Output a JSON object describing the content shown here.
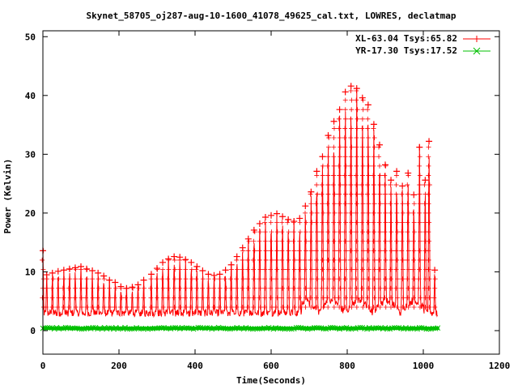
{
  "chart_data": {
    "type": "line",
    "title": "Skynet_58705_oj287-aug-10-1600_41078_49625_cal.txt, LOWRES, declatmap",
    "xlabel": "Time(Seconds)",
    "ylabel": "Power (Kelvin)",
    "xlim": [
      0,
      1200
    ],
    "ylim": [
      -4,
      51
    ],
    "xticks": [
      "0",
      "200",
      "400",
      "600",
      "800",
      "1000",
      "1200"
    ],
    "yticks": [
      "0",
      "10",
      "20",
      "30",
      "40",
      "50"
    ],
    "xtick_values": [
      0,
      200,
      400,
      600,
      800,
      1000,
      1200
    ],
    "ytick_values": [
      0,
      10,
      20,
      30,
      40,
      50
    ],
    "legend_position": "top-right",
    "grid": false,
    "x_end": 1038,
    "series": [
      {
        "name": "XL-63.04 Tsys:65.82",
        "color": "#ff0000",
        "marker": "+",
        "peaks": [
          {
            "x": 0,
            "y": 13.6
          },
          {
            "x": 10,
            "y": 9.5
          },
          {
            "x": 25,
            "y": 9.8
          },
          {
            "x": 40,
            "y": 10.1
          },
          {
            "x": 55,
            "y": 10.3
          },
          {
            "x": 70,
            "y": 10.5
          },
          {
            "x": 85,
            "y": 10.7
          },
          {
            "x": 100,
            "y": 10.9
          },
          {
            "x": 115,
            "y": 10.5
          },
          {
            "x": 130,
            "y": 10.2
          },
          {
            "x": 145,
            "y": 9.8
          },
          {
            "x": 160,
            "y": 9.3
          },
          {
            "x": 175,
            "y": 8.6
          },
          {
            "x": 190,
            "y": 8.2
          },
          {
            "x": 205,
            "y": 7.5
          },
          {
            "x": 220,
            "y": 7.2
          },
          {
            "x": 235,
            "y": 7.4
          },
          {
            "x": 250,
            "y": 7.8
          },
          {
            "x": 265,
            "y": 8.6
          },
          {
            "x": 285,
            "y": 9.6
          },
          {
            "x": 300,
            "y": 10.6
          },
          {
            "x": 315,
            "y": 11.6
          },
          {
            "x": 330,
            "y": 12.2
          },
          {
            "x": 345,
            "y": 12.6
          },
          {
            "x": 360,
            "y": 12.5
          },
          {
            "x": 375,
            "y": 12.1
          },
          {
            "x": 390,
            "y": 11.6
          },
          {
            "x": 405,
            "y": 10.9
          },
          {
            "x": 420,
            "y": 10.2
          },
          {
            "x": 435,
            "y": 9.6
          },
          {
            "x": 450,
            "y": 9.4
          },
          {
            "x": 465,
            "y": 9.6
          },
          {
            "x": 480,
            "y": 10.3
          },
          {
            "x": 495,
            "y": 11.2
          },
          {
            "x": 510,
            "y": 12.6
          },
          {
            "x": 525,
            "y": 14.1
          },
          {
            "x": 540,
            "y": 15.6
          },
          {
            "x": 555,
            "y": 17.1
          },
          {
            "x": 570,
            "y": 18.2
          },
          {
            "x": 585,
            "y": 19.3
          },
          {
            "x": 600,
            "y": 19.6
          },
          {
            "x": 615,
            "y": 19.9
          },
          {
            "x": 630,
            "y": 19.4
          },
          {
            "x": 645,
            "y": 18.9
          },
          {
            "x": 660,
            "y": 18.6
          },
          {
            "x": 675,
            "y": 19.1
          },
          {
            "x": 690,
            "y": 21.2
          },
          {
            "x": 705,
            "y": 23.6
          },
          {
            "x": 720,
            "y": 27.1
          },
          {
            "x": 735,
            "y": 29.6
          },
          {
            "x": 750,
            "y": 33.2
          },
          {
            "x": 765,
            "y": 35.6
          },
          {
            "x": 780,
            "y": 37.6
          },
          {
            "x": 795,
            "y": 40.6
          },
          {
            "x": 810,
            "y": 41.6
          },
          {
            "x": 825,
            "y": 41.2
          },
          {
            "x": 840,
            "y": 39.6
          },
          {
            "x": 855,
            "y": 38.4
          },
          {
            "x": 870,
            "y": 35.1
          },
          {
            "x": 885,
            "y": 31.6
          },
          {
            "x": 900,
            "y": 28.2
          },
          {
            "x": 915,
            "y": 25.6
          },
          {
            "x": 930,
            "y": 27.1
          },
          {
            "x": 945,
            "y": 24.6
          },
          {
            "x": 960,
            "y": 26.8
          },
          {
            "x": 975,
            "y": 23.1
          },
          {
            "x": 990,
            "y": 31.2
          },
          {
            "x": 1005,
            "y": 25.6
          },
          {
            "x": 1015,
            "y": 32.2
          },
          {
            "x": 1030,
            "y": 10.3
          }
        ]
      },
      {
        "name": "YR-17.30 Tsys:17.52",
        "color": "#00c000",
        "marker": "x",
        "level": 0.4
      }
    ]
  }
}
